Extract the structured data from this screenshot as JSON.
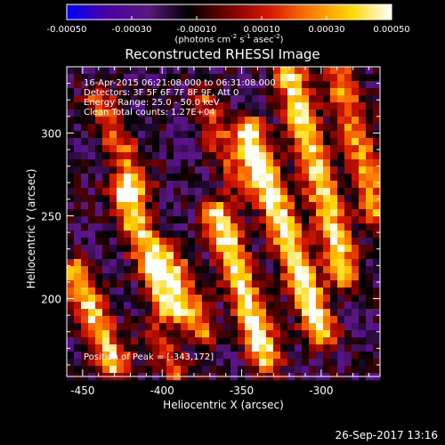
{
  "window": {
    "date_stamp": "26-Sep-2017 13:16"
  },
  "colorbar": {
    "tick_labels": [
      "-0.00050",
      "-0.00030",
      "-0.00010",
      "0.00010",
      "0.00030",
      "0.00050"
    ],
    "tick_values": [
      -0.0005,
      -0.0003,
      -0.0001,
      0.0001,
      0.0003,
      0.0005
    ],
    "unit_parts": {
      "a": "(photons cm",
      "e1": "-2",
      "b": " s",
      "e2": "-1",
      "c": " asec",
      "e3": "-2",
      "d": ")"
    },
    "range": [
      -0.0005,
      0.0005
    ],
    "colors": [
      "#0000ff",
      "#4b00a0",
      "#5a1880",
      "#000000",
      "#7a0000",
      "#d81800",
      "#ff7a00",
      "#ffd800",
      "#ffffff"
    ]
  },
  "info": {
    "time": "16-Apr-2015 06:21:08.000 to 06:31:08.000",
    "detectors": "Detectors: 3F 5F 6F 7F 8F 9F, Att 0",
    "energy": "Energy Range: 25.0 - 50.0 keV",
    "clean": "Clean     Total counts: 1.27E+04",
    "peak": "Position of Peak = [-343,172]"
  },
  "chart_data": {
    "type": "heatmap",
    "title": "Reconstructed RHESSI Image",
    "xlabel": "Heliocentric X (arcsec)",
    "ylabel": "Heliocentric Y (arcsec)",
    "xlim": [
      -460,
      -263
    ],
    "ylim": [
      153,
      340
    ],
    "x_ticks": [
      -450,
      -400,
      -350,
      -300
    ],
    "x_tick_labels": [
      "-450",
      "-400",
      "-350",
      "-300"
    ],
    "y_ticks": [
      200,
      250,
      300
    ],
    "y_tick_labels": [
      "200",
      "250",
      "300"
    ],
    "peak_position": [
      -343,
      172
    ],
    "grid": false,
    "stripes": [
      {
        "x0": -455,
        "y0": 215,
        "x1": -430,
        "y1": 160,
        "strength": 0.75
      },
      {
        "x0": -425,
        "y0": 265,
        "x1": -395,
        "y1": 195,
        "strength": 0.8
      },
      {
        "x0": -395,
        "y0": 225,
        "x1": -375,
        "y1": 180,
        "strength": 0.55
      },
      {
        "x0": -365,
        "y0": 250,
        "x1": -335,
        "y1": 165,
        "strength": 0.85
      },
      {
        "x0": -345,
        "y0": 300,
        "x1": -300,
        "y1": 180,
        "strength": 0.9
      },
      {
        "x0": -320,
        "y0": 335,
        "x1": -285,
        "y1": 215,
        "strength": 0.8
      },
      {
        "x0": -290,
        "y0": 340,
        "x1": -265,
        "y1": 250,
        "strength": 0.6
      },
      {
        "x0": -440,
        "y0": 320,
        "x1": -415,
        "y1": 270,
        "strength": 0.5
      },
      {
        "x0": -375,
        "y0": 320,
        "x1": -350,
        "y1": 270,
        "strength": 0.45
      },
      {
        "x0": -405,
        "y0": 175,
        "x1": -390,
        "y1": 155,
        "strength": 0.4
      }
    ]
  }
}
